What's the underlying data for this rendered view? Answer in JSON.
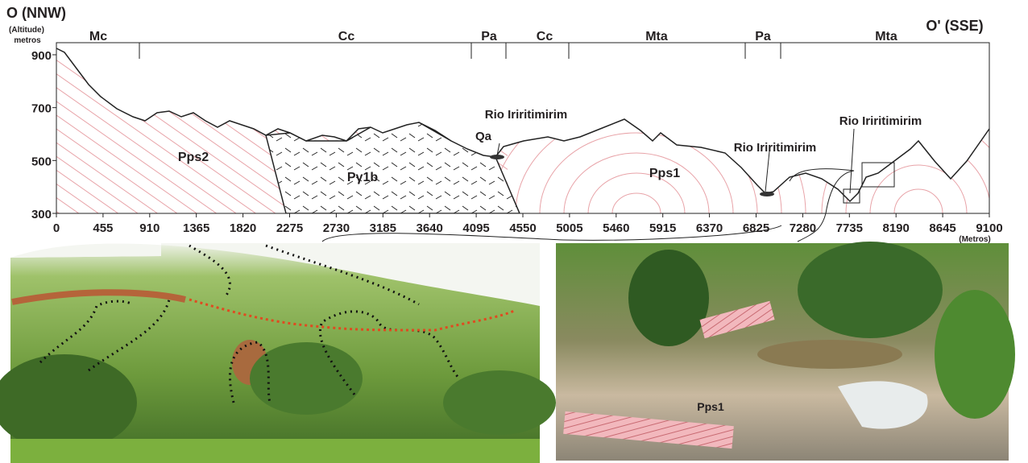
{
  "header": {
    "left": "O (NNW)",
    "right": "O' (SSE)",
    "y_label_1": "(Altitude)",
    "y_label_2": "metros",
    "x_unit": "(Metros)"
  },
  "yticks": [
    900,
    700,
    500,
    300
  ],
  "xticks": [
    0,
    455,
    910,
    1365,
    1820,
    2275,
    2730,
    3185,
    3640,
    4095,
    4550,
    5005,
    5460,
    5915,
    6370,
    6825,
    7280,
    7735,
    8190,
    8645,
    9100
  ],
  "units": [
    "Mc",
    "Cc",
    "Pa",
    "Cc",
    "Mta",
    "Pa",
    "Mta"
  ],
  "formations": [
    "Pps2",
    "Pγ1b",
    "Pps1"
  ],
  "rivers": [
    "Rio Iriritimirim",
    "Rio Iriritimirim",
    "Rio Iriritimirim"
  ],
  "deposit": "Qa",
  "photo_label": "Pps1"
}
